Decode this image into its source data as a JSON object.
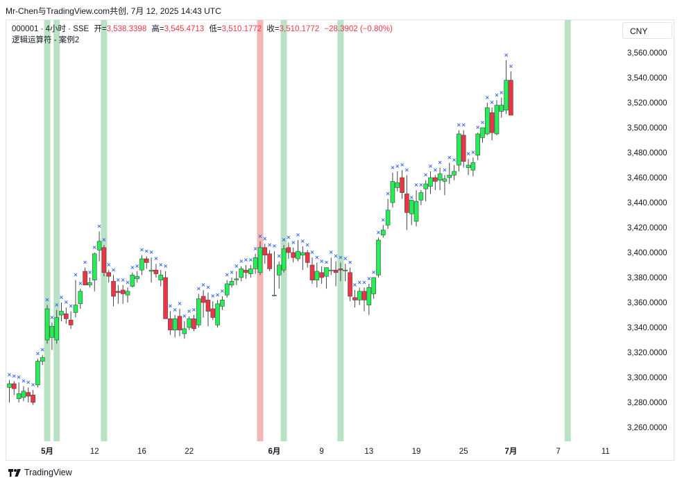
{
  "watermark": "Mr-Chen与TradingView.com共创, 7月 12, 2025 14:43 UTC",
  "legend": {
    "symbol": "000001 · 4小时 · SSE",
    "open_label": "开=",
    "open": "3,538.3398",
    "high_label": "高=",
    "high": "3,545.4713",
    "low_label": "低=",
    "low": "3,510.1772",
    "close_label": "收=",
    "close": "3,510.1772",
    "change": "−28.3902 (−0.80%)",
    "indicator": "逻辑运算符 - 案例2"
  },
  "currency": "CNY",
  "footer": "TradingView",
  "colors": {
    "up": "#22ee55",
    "down": "#ee3344",
    "wick": "#444444",
    "marker": "#2962ff",
    "green_band": "#b9e2c4",
    "red_band": "#f5b5b5"
  },
  "chart_data": {
    "type": "candlestick",
    "ylim": [
      3245,
      3572
    ],
    "y_ticks": [
      "3,260.0000",
      "3,280.0000",
      "3,300.0000",
      "3,320.0000",
      "3,340.0000",
      "3,360.0000",
      "3,380.0000",
      "3,400.0000",
      "3,420.0000",
      "3,440.0000",
      "3,460.0000",
      "3,480.0000",
      "3,500.0000",
      "3,520.0000",
      "3,540.0000",
      "3,560.0000"
    ],
    "x_ticks": [
      {
        "label": "5月",
        "bar": 8,
        "bold": true
      },
      {
        "label": "12",
        "bar": 18,
        "bold": false
      },
      {
        "label": "16",
        "bar": 28,
        "bold": false
      },
      {
        "label": "22",
        "bar": 38,
        "bold": false
      },
      {
        "label": "6月",
        "bar": 56,
        "bold": true
      },
      {
        "label": "9",
        "bar": 66,
        "bold": false
      },
      {
        "label": "13",
        "bar": 76,
        "bold": false
      },
      {
        "label": "19",
        "bar": 86,
        "bold": false
      },
      {
        "label": "25",
        "bar": 96,
        "bold": false
      },
      {
        "label": "7月",
        "bar": 106,
        "bold": true
      },
      {
        "label": "7",
        "bar": 116,
        "bold": false
      },
      {
        "label": "11",
        "bar": 126,
        "bold": false
      }
    ],
    "highlight_bands": [
      {
        "bar": 8,
        "color": "green"
      },
      {
        "bar": 10,
        "color": "green"
      },
      {
        "bar": 20,
        "color": "green"
      },
      {
        "bar": 53,
        "color": "red"
      },
      {
        "bar": 58,
        "color": "green"
      },
      {
        "bar": 70,
        "color": "green"
      },
      {
        "bar": 118,
        "color": "green"
      }
    ],
    "candles": [
      [
        3292,
        3298,
        3280,
        3295
      ],
      [
        3295,
        3297,
        3286,
        3291
      ],
      [
        3283,
        3296,
        3280,
        3287
      ],
      [
        3284,
        3293,
        3281,
        3289
      ],
      [
        3288,
        3292,
        3280,
        3285
      ],
      [
        3286,
        3290,
        3278,
        3280
      ],
      [
        3294,
        3315,
        3292,
        3313
      ],
      [
        3313,
        3318,
        3310,
        3316
      ],
      [
        3330,
        3358,
        3327,
        3355
      ],
      [
        3332,
        3344,
        3322,
        3341
      ],
      [
        3330,
        3354,
        3327,
        3348
      ],
      [
        3350,
        3360,
        3345,
        3353
      ],
      [
        3351,
        3356,
        3343,
        3347
      ],
      [
        3346,
        3353,
        3339,
        3342
      ],
      [
        3352,
        3378,
        3348,
        3358
      ],
      [
        3359,
        3371,
        3355,
        3369
      ],
      [
        3385,
        3388,
        3374,
        3374
      ],
      [
        3374,
        3380,
        3372,
        3376
      ],
      [
        3378,
        3400,
        3369,
        3399
      ],
      [
        3402,
        3417,
        3393,
        3409
      ],
      [
        3404,
        3406,
        3381,
        3384
      ],
      [
        3384,
        3386,
        3376,
        3381
      ],
      [
        3377,
        3382,
        3357,
        3365
      ],
      [
        3369,
        3374,
        3359,
        3368
      ],
      [
        3370,
        3374,
        3359,
        3367
      ],
      [
        3366,
        3372,
        3360,
        3369
      ],
      [
        3373,
        3384,
        3372,
        3382
      ],
      [
        3379,
        3385,
        3376,
        3381
      ],
      [
        3386,
        3398,
        3382,
        3395
      ],
      [
        3395,
        3397,
        3387,
        3392
      ],
      [
        3385,
        3396,
        3376,
        3386
      ],
      [
        3386,
        3391,
        3380,
        3383
      ],
      [
        3378,
        3386,
        3373,
        3382
      ],
      [
        3380,
        3385,
        3347,
        3347
      ],
      [
        3347,
        3353,
        3334,
        3338
      ],
      [
        3338,
        3350,
        3332,
        3347
      ],
      [
        3349,
        3355,
        3333,
        3338
      ],
      [
        3335,
        3345,
        3331,
        3339
      ],
      [
        3340,
        3349,
        3338,
        3347
      ],
      [
        3347,
        3350,
        3337,
        3339
      ],
      [
        3342,
        3367,
        3340,
        3363
      ],
      [
        3365,
        3370,
        3348,
        3360
      ],
      [
        3362,
        3368,
        3341,
        3353
      ],
      [
        3355,
        3361,
        3346,
        3348
      ],
      [
        3342,
        3362,
        3340,
        3359
      ],
      [
        3357,
        3365,
        3354,
        3362
      ],
      [
        3366,
        3378,
        3364,
        3375
      ],
      [
        3374,
        3380,
        3372,
        3377
      ],
      [
        3378,
        3385,
        3374,
        3379
      ],
      [
        3380,
        3389,
        3377,
        3387
      ],
      [
        3386,
        3390,
        3379,
        3384
      ],
      [
        3383,
        3390,
        3380,
        3387
      ],
      [
        3387,
        3399,
        3383,
        3396
      ],
      [
        3384,
        3409,
        3382,
        3404
      ],
      [
        3404,
        3407,
        3391,
        3398
      ],
      [
        3399,
        3402,
        3385,
        3387
      ],
      [
        3366,
        3401,
        3365,
        3366
      ],
      [
        3382,
        3393,
        3371,
        3390
      ],
      [
        3386,
        3406,
        3384,
        3403
      ],
      [
        3404,
        3408,
        3395,
        3400
      ],
      [
        3400,
        3404,
        3392,
        3396
      ],
      [
        3395,
        3410,
        3393,
        3401
      ],
      [
        3398,
        3405,
        3386,
        3400
      ],
      [
        3400,
        3402,
        3388,
        3392
      ],
      [
        3390,
        3396,
        3375,
        3378
      ],
      [
        3378,
        3392,
        3372,
        3385
      ],
      [
        3384,
        3389,
        3375,
        3380
      ],
      [
        3381,
        3388,
        3371,
        3388
      ],
      [
        3386,
        3396,
        3382,
        3386
      ],
      [
        3386,
        3393,
        3373,
        3384
      ],
      [
        3387,
        3392,
        3377,
        3386
      ],
      [
        3386,
        3391,
        3377,
        3386
      ],
      [
        3384,
        3388,
        3361,
        3365
      ],
      [
        3364,
        3370,
        3356,
        3362
      ],
      [
        3362,
        3372,
        3358,
        3369
      ],
      [
        3369,
        3372,
        3353,
        3362
      ],
      [
        3358,
        3375,
        3350,
        3372
      ],
      [
        3367,
        3380,
        3363,
        3380
      ],
      [
        3382,
        3412,
        3380,
        3410
      ],
      [
        3414,
        3422,
        3412,
        3418
      ],
      [
        3422,
        3443,
        3419,
        3434
      ],
      [
        3440,
        3464,
        3436,
        3457
      ],
      [
        3452,
        3465,
        3449,
        3456
      ],
      [
        3460,
        3466,
        3443,
        3448
      ],
      [
        3447,
        3462,
        3418,
        3432
      ],
      [
        3431,
        3440,
        3422,
        3442
      ],
      [
        3425,
        3450,
        3421,
        3441
      ],
      [
        3442,
        3450,
        3438,
        3448
      ],
      [
        3451,
        3458,
        3441,
        3455
      ],
      [
        3453,
        3465,
        3447,
        3460
      ],
      [
        3460,
        3462,
        3450,
        3457
      ],
      [
        3458,
        3468,
        3450,
        3463
      ],
      [
        3457,
        3462,
        3446,
        3459
      ],
      [
        3460,
        3472,
        3455,
        3462
      ],
      [
        3462,
        3470,
        3458,
        3465
      ],
      [
        3470,
        3498,
        3465,
        3495
      ],
      [
        3494,
        3498,
        3468,
        3473
      ],
      [
        3468,
        3475,
        3462,
        3470
      ],
      [
        3466,
        3476,
        3461,
        3472
      ],
      [
        3478,
        3496,
        3474,
        3495
      ],
      [
        3492,
        3500,
        3488,
        3500
      ],
      [
        3495,
        3520,
        3494,
        3516
      ],
      [
        3512,
        3516,
        3490,
        3496
      ],
      [
        3495,
        3522,
        3494,
        3518
      ],
      [
        3513,
        3524,
        3508,
        3518
      ],
      [
        3514,
        3554,
        3511,
        3538
      ],
      [
        3538,
        3545,
        3510,
        3510
      ]
    ]
  }
}
